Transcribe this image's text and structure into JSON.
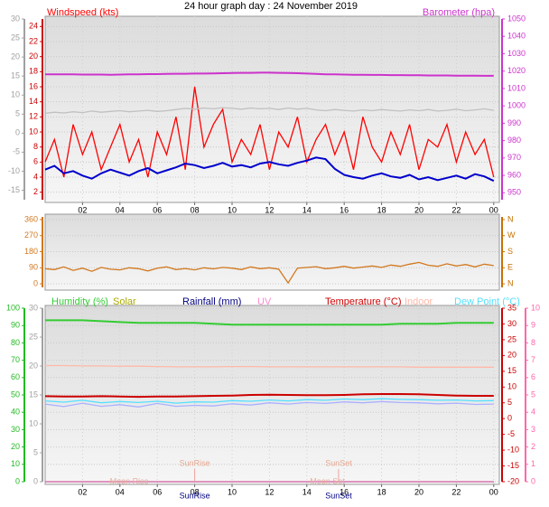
{
  "chart_data": [
    {
      "type": "line",
      "title": "24 hour graph day : 24 November 2019",
      "grid": true,
      "grid_axis": 1,
      "x": [
        0,
        0.5,
        1,
        1.5,
        2,
        2.5,
        3,
        3.5,
        4,
        4.5,
        5,
        5.5,
        6,
        6.5,
        7,
        7.5,
        8,
        8.5,
        9,
        9.5,
        10,
        10.5,
        11,
        11.5,
        12,
        12.5,
        13,
        13.5,
        14,
        14.5,
        15,
        15.5,
        16,
        16.5,
        17,
        17.5,
        18,
        18.5,
        19,
        19.5,
        20,
        20.5,
        21,
        21.5,
        22,
        22.5,
        23,
        23.5,
        24
      ],
      "xlim": [
        0,
        24.3
      ],
      "xticks": [
        {
          "value": 2,
          "label": "02"
        },
        {
          "value": 4,
          "label": "04"
        },
        {
          "value": 6,
          "label": "06"
        },
        {
          "value": 8,
          "label": "08"
        },
        10,
        12,
        14,
        16,
        18,
        20,
        22,
        {
          "value": 24,
          "label": "00"
        }
      ],
      "axes": [
        {
          "side": "left",
          "color": "#a0a0a0",
          "lim": [
            -17.5,
            30
          ],
          "ticks": [
            30,
            25,
            20,
            15,
            10,
            5,
            0,
            -5,
            -10,
            -15
          ]
        },
        {
          "side": "left",
          "color": "#cc0000",
          "lim": [
            1,
            25
          ],
          "ticks": [
            24,
            22,
            20,
            18,
            16,
            14,
            12,
            10,
            8,
            6,
            4,
            2
          ]
        },
        {
          "side": "right",
          "color": "#cc33cc",
          "lim": [
            946,
            1050
          ],
          "ticks": [
            1050,
            1040,
            1030,
            1020,
            1010,
            1000,
            990,
            980,
            970,
            960,
            950
          ]
        }
      ],
      "series": [
        {
          "name": "Windspeed (kts)",
          "color": "#ff0000",
          "axis": 1,
          "values": [
            6,
            9,
            4,
            11,
            7,
            10,
            5,
            8,
            11,
            6,
            9,
            4,
            10,
            7,
            12,
            5,
            16,
            8,
            11,
            13,
            6,
            9,
            7,
            11,
            5,
            10,
            8,
            12,
            6,
            9,
            11,
            7,
            10,
            5,
            12,
            8,
            6,
            10,
            7,
            11,
            5,
            9,
            8,
            11,
            6,
            10,
            7,
            9,
            4
          ]
        },
        {
          "color": "#c0c0c0",
          "axis": 0,
          "values": [
            5.2,
            5.5,
            5.3,
            5.6,
            5.4,
            5.8,
            5.5,
            5.7,
            5.9,
            5.6,
            5.8,
            6.0,
            5.7,
            5.9,
            6.2,
            6.5,
            6.3,
            6.6,
            6.4,
            6.7,
            6.5,
            6.3,
            6.6,
            6.4,
            6.5,
            6.2,
            6.6,
            6.3,
            6.5,
            6.1,
            5.9,
            6.2,
            6.0,
            5.8,
            6.1,
            5.9,
            6.2,
            6.0,
            5.8,
            6.1,
            5.9,
            6.2,
            5.8,
            6.0,
            6.3,
            5.9,
            6.1,
            6.4,
            6.0
          ]
        },
        {
          "color": "#0000cc",
          "axis": 1,
          "values": [
            5,
            5.5,
            4.5,
            4.8,
            4.2,
            3.8,
            4.5,
            5,
            4.6,
            4.2,
            4.8,
            5.2,
            4.5,
            4.9,
            5.3,
            5.8,
            5.6,
            5.2,
            5.5,
            5.9,
            5.4,
            5.6,
            5.3,
            5.8,
            6,
            5.7,
            5.5,
            5.9,
            6.2,
            6.6,
            6.4,
            5.1,
            4.3,
            4.0,
            3.8,
            4.2,
            4.5,
            4.1,
            3.9,
            4.3,
            3.7,
            4.0,
            3.6,
            3.9,
            4.2,
            3.8,
            4.4,
            4.1,
            3.5
          ]
        },
        {
          "name": "Barometer (hpa)",
          "color": "#cc33cc",
          "axis": 2,
          "values": [
            1018.2,
            1018.2,
            1018.1,
            1018.1,
            1018.0,
            1018.0,
            1018.0,
            1017.9,
            1018.0,
            1018.1,
            1018.2,
            1018.3,
            1018.3,
            1018.4,
            1018.5,
            1018.5,
            1018.6,
            1018.6,
            1018.7,
            1018.8,
            1018.9,
            1019.0,
            1019.0,
            1019.1,
            1019.1,
            1019.0,
            1018.9,
            1018.8,
            1018.6,
            1018.4,
            1018.2,
            1018.1,
            1018.0,
            1017.9,
            1017.9,
            1017.8,
            1017.8,
            1017.7,
            1017.7,
            1017.6,
            1017.6,
            1017.5,
            1017.5,
            1017.5,
            1017.4,
            1017.4,
            1017.4,
            1017.3,
            1017.3
          ]
        }
      ]
    },
    {
      "type": "line",
      "grid": true,
      "grid_axis": 0,
      "x": [
        0,
        0.5,
        1,
        1.5,
        2,
        2.5,
        3,
        3.5,
        4,
        4.5,
        5,
        5.5,
        6,
        6.5,
        7,
        7.5,
        8,
        8.5,
        9,
        9.5,
        10,
        10.5,
        11,
        11.5,
        12,
        12.5,
        13,
        13.5,
        14,
        14.5,
        15,
        15.5,
        16,
        16.5,
        17,
        17.5,
        18,
        18.5,
        19,
        19.5,
        20,
        20.5,
        21,
        21.5,
        22,
        22.5,
        23,
        23.5,
        24
      ],
      "xlim": [
        0,
        24.3
      ],
      "axes": [
        {
          "side": "left",
          "color": "#d2781e",
          "lim": [
            -20,
            375
          ],
          "ticks": [
            360,
            270,
            180,
            90,
            0
          ]
        },
        {
          "side": "right",
          "color": "#c87000",
          "lim": [
            -20,
            375
          ],
          "ticks": [
            {
              "value": 360,
              "label": "N"
            },
            {
              "value": 270,
              "label": "W"
            },
            {
              "value": 180,
              "label": "S"
            },
            {
              "value": 90,
              "label": "E"
            },
            {
              "value": 0,
              "label": "N"
            }
          ]
        }
      ],
      "series": [
        {
          "color": "#d2781e",
          "axis": 0,
          "values": [
            85,
            80,
            95,
            75,
            88,
            70,
            92,
            82,
            78,
            90,
            85,
            72,
            88,
            95,
            80,
            86,
            78,
            90,
            84,
            92,
            88,
            80,
            95,
            85,
            90,
            82,
            5,
            88,
            92,
            96,
            85,
            90,
            98,
            88,
            94,
            100,
            92,
            105,
            98,
            110,
            120,
            104,
            98,
            112,
            100,
            108,
            95,
            110,
            102
          ]
        }
      ]
    },
    {
      "type": "line",
      "grid": true,
      "grid_axis": 0,
      "x": [
        0,
        1,
        2,
        3,
        4,
        5,
        6,
        7,
        8,
        9,
        10,
        11,
        12,
        13,
        14,
        15,
        16,
        17,
        18,
        19,
        20,
        21,
        22,
        23,
        24
      ],
      "xlim": [
        0,
        24.3
      ],
      "xticks": [
        {
          "value": 2,
          "label": "02"
        },
        {
          "value": 4,
          "label": "04"
        },
        {
          "value": 6,
          "label": "06"
        },
        {
          "value": 8,
          "label": "08"
        },
        10,
        12,
        14,
        16,
        18,
        20,
        22,
        {
          "value": 24,
          "label": "00"
        }
      ],
      "axes": [
        {
          "side": "left",
          "color": "#22bb22",
          "lim": [
            0,
            100
          ],
          "ticks": [
            100,
            90,
            80,
            70,
            60,
            50,
            40,
            30,
            20,
            10,
            0
          ]
        },
        {
          "side": "left",
          "color": "#a0a0a0",
          "lim": [
            0,
            30
          ],
          "ticks": [
            30,
            25,
            20,
            15,
            10,
            5,
            0
          ]
        },
        {
          "side": "right",
          "color": "#cc0000",
          "lim": [
            -20,
            35
          ],
          "ticks": [
            35,
            30,
            25,
            20,
            15,
            10,
            5,
            0,
            -5,
            -10,
            -15,
            -20
          ]
        },
        {
          "side": "right",
          "color": "#ff66aa",
          "lim": [
            0,
            10
          ],
          "ticks": [
            10,
            9,
            8,
            7,
            6,
            5,
            4,
            3,
            2,
            1,
            0
          ]
        }
      ],
      "series": [
        {
          "name": "Humidity (%)",
          "color": "#33cc33",
          "axis": 0,
          "values": [
            93,
            93,
            93,
            92.5,
            92,
            91.5,
            91.5,
            91.5,
            91.5,
            91,
            90.5,
            90.5,
            90.5,
            90.5,
            90.5,
            90.5,
            90.5,
            90.5,
            90.5,
            91,
            91,
            91,
            91.5,
            91.5,
            91.5
          ]
        },
        {
          "name": "Solar",
          "color": "#aaaa00",
          "axis": 0,
          "values": [
            0,
            0,
            0,
            0,
            0,
            0,
            0,
            0,
            0,
            0,
            0,
            0,
            0,
            0,
            0,
            0,
            0,
            0,
            0,
            0,
            0,
            0,
            0,
            0,
            0
          ]
        },
        {
          "name": "Rainfall (mm)",
          "color": "#000080",
          "axis": 1,
          "values": [
            0,
            0,
            0,
            0,
            0,
            0,
            0,
            0,
            0,
            0,
            0,
            0,
            0,
            0,
            0,
            0,
            0,
            0,
            0,
            0,
            0,
            0,
            0,
            0,
            0
          ]
        },
        {
          "name": "UV",
          "color": "#ff88cc",
          "axis": 3,
          "values": [
            0,
            0,
            0,
            0,
            0,
            0,
            0,
            0,
            0,
            0,
            0,
            0,
            0,
            0,
            0,
            0,
            0,
            0,
            0,
            0,
            0,
            0,
            0,
            0,
            0
          ]
        },
        {
          "name": "Temperature (°C)",
          "color": "#cc0000",
          "axis": 2,
          "values": [
            7.1,
            7.0,
            7.0,
            7.1,
            7.0,
            6.9,
            7.0,
            7.0,
            7.1,
            7.2,
            7.3,
            7.5,
            7.6,
            7.5,
            7.4,
            7.4,
            7.5,
            7.7,
            7.8,
            7.8,
            7.7,
            7.5,
            7.3,
            7.2,
            7.2
          ]
        },
        {
          "name": "Indoor",
          "color": "#ffb8a8",
          "axis": 2,
          "values": [
            16.8,
            16.8,
            16.7,
            16.7,
            16.6,
            16.6,
            16.5,
            16.4,
            16.4,
            16.4,
            16.5,
            16.5,
            16.4,
            16.4,
            16.4,
            16.4,
            16.4,
            16.4,
            16.4,
            16.4,
            16.3,
            16.3,
            16.3,
            16.3,
            16.3
          ]
        },
        {
          "name": "Dew Point (°C)",
          "color": "#55e0ff",
          "axis": 2,
          "values": [
            5.6,
            5.2,
            5.8,
            5.0,
            5.4,
            5.1,
            5.5,
            4.9,
            5.3,
            5.2,
            5.7,
            5.5,
            5.9,
            5.6,
            6.0,
            5.8,
            6.2,
            6.0,
            6.3,
            6.1,
            6.0,
            5.8,
            5.9,
            5.6,
            5.7
          ]
        },
        {
          "color": "#aab0ff",
          "axis": 2,
          "values": [
            4.6,
            3.8,
            4.9,
            3.9,
            4.4,
            3.7,
            4.8,
            3.9,
            4.2,
            4.0,
            4.7,
            4.3,
            5.0,
            4.6,
            5.1,
            4.8,
            5.3,
            5.0,
            5.4,
            5.1,
            5.0,
            4.7,
            4.9,
            4.5,
            4.6
          ]
        }
      ],
      "sun_events": [
        {
          "label": "SunRise",
          "x": 8.0
        },
        {
          "label": "SunSet",
          "x": 15.7
        }
      ],
      "moon_events": [
        {
          "label": "Moon Rise",
          "x": 4.5
        },
        {
          "label": "Moon Set",
          "x": 15.1
        }
      ]
    }
  ]
}
